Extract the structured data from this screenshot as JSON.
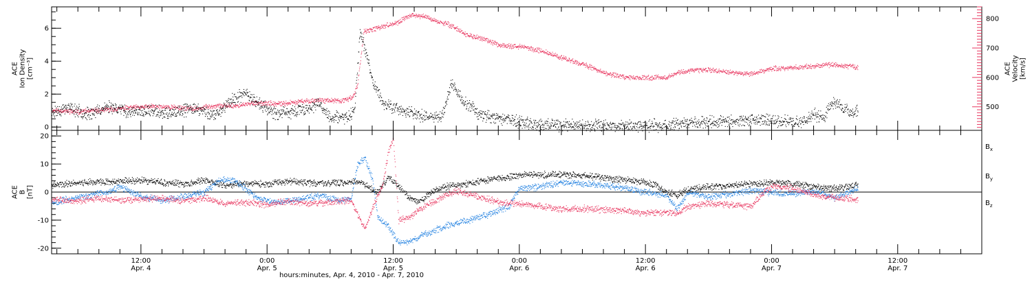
{
  "colors": {
    "black": "#000000",
    "pink": "#e8365f",
    "blue": "#1e7fe0",
    "axis": "#000000"
  },
  "time_axis": {
    "label": "hours:minutes, Apr.  4, 2010 - Apr.  7, 2010",
    "range_hours": [
      3.5,
      92.0
    ],
    "data_end_hours": 80.2,
    "ticks": [
      {
        "hours": 12,
        "time": "12:00",
        "date": "Apr. 4"
      },
      {
        "hours": 24,
        "time": "0:00",
        "date": "Apr. 5"
      },
      {
        "hours": 36,
        "time": "12:00",
        "date": "Apr. 5"
      },
      {
        "hours": 48,
        "time": "0:00",
        "date": "Apr. 6"
      },
      {
        "hours": 60,
        "time": "12:00",
        "date": "Apr. 6"
      },
      {
        "hours": 72,
        "time": "0:00",
        "date": "Apr. 7"
      },
      {
        "hours": 84,
        "time": "12:00",
        "date": "Apr. 7"
      }
    ]
  },
  "chart_data": [
    {
      "type": "scatter",
      "title": "",
      "left_axis": {
        "label_lines": [
          "ACE",
          "Ion Density",
          "[cm⁻³]"
        ],
        "ylim": [
          -0.2,
          7.3
        ],
        "ticks": [
          0,
          2,
          4,
          6
        ],
        "tick_labels": [
          "0",
          "2",
          "4",
          "6"
        ]
      },
      "right_axis": {
        "label_lines": [
          "ACE",
          "Velocity",
          "[km/s]"
        ],
        "ylim": [
          420,
          840
        ],
        "ticks": [
          500,
          600,
          700,
          800
        ],
        "tick_labels": [
          "500",
          "600",
          "700",
          "800"
        ],
        "color": "#e8365f"
      },
      "series": [
        {
          "name": "",
          "axis": "left",
          "color": "#000000",
          "points": [
            [
              3.5,
              0.9
            ],
            [
              5,
              1.2
            ],
            [
              7,
              0.8
            ],
            [
              9,
              1.3
            ],
            [
              11,
              0.9
            ],
            [
              13,
              1.0
            ],
            [
              15,
              0.8
            ],
            [
              17,
              1.2
            ],
            [
              19,
              0.7
            ],
            [
              20.5,
              1.6
            ],
            [
              22,
              2.1
            ],
            [
              23.5,
              1.3
            ],
            [
              25,
              0.8
            ],
            [
              27,
              1.0
            ],
            [
              29,
              1.4
            ],
            [
              30,
              0.6
            ],
            [
              31.5,
              0.6
            ],
            [
              32.3,
              1.0
            ],
            [
              32.8,
              5.8
            ],
            [
              33.3,
              4.8
            ],
            [
              34,
              2.8
            ],
            [
              35,
              1.5
            ],
            [
              36,
              1.2
            ],
            [
              37,
              1.0
            ],
            [
              38,
              0.8
            ],
            [
              39.5,
              0.7
            ],
            [
              40.5,
              0.6
            ],
            [
              41,
              1.5
            ],
            [
              41.5,
              2.7
            ],
            [
              42.5,
              1.7
            ],
            [
              44,
              0.9
            ],
            [
              45.5,
              0.6
            ],
            [
              47,
              0.5
            ],
            [
              48,
              0.3
            ],
            [
              50,
              0.15
            ],
            [
              53,
              0.1
            ],
            [
              56,
              0.15
            ],
            [
              59,
              0.1
            ],
            [
              62,
              0.1
            ],
            [
              63,
              0.2
            ],
            [
              65,
              0.3
            ],
            [
              68,
              0.35
            ],
            [
              70,
              0.5
            ],
            [
              72,
              0.4
            ],
            [
              74,
              0.3
            ],
            [
              75,
              0.35
            ],
            [
              76,
              0.8
            ],
            [
              77,
              0.6
            ],
            [
              77.5,
              1.5
            ],
            [
              78.5,
              1.4
            ],
            [
              79.5,
              0.8
            ],
            [
              80.2,
              1.1
            ]
          ]
        },
        {
          "name": "",
          "axis": "right",
          "color": "#e8365f",
          "points": [
            [
              3.5,
              490
            ],
            [
              6,
              484
            ],
            [
              9,
              492
            ],
            [
              11,
              498
            ],
            [
              13,
              502
            ],
            [
              15,
              500
            ],
            [
              17,
              494
            ],
            [
              19,
              505
            ],
            [
              21,
              504
            ],
            [
              23,
              515
            ],
            [
              25,
              510
            ],
            [
              27,
              518
            ],
            [
              29,
              524
            ],
            [
              31,
              520
            ],
            [
              32.2,
              535
            ],
            [
              32.6,
              578
            ],
            [
              33.2,
              760
            ],
            [
              33.8,
              760
            ],
            [
              35,
              775
            ],
            [
              36.5,
              788
            ],
            [
              37.5,
              812
            ],
            [
              39,
              808
            ],
            [
              40,
              793
            ],
            [
              41.5,
              778
            ],
            [
              43,
              745
            ],
            [
              44.5,
              732
            ],
            [
              46,
              712
            ],
            [
              48.5,
              704
            ],
            [
              50,
              692
            ],
            [
              52,
              668
            ],
            [
              54,
              646
            ],
            [
              56,
              618
            ],
            [
              58,
              600
            ],
            [
              60,
              600
            ],
            [
              62,
              602
            ],
            [
              63.5,
              622
            ],
            [
              66,
              628
            ],
            [
              68,
              618
            ],
            [
              70,
              612
            ],
            [
              72,
              632
            ],
            [
              74,
              634
            ],
            [
              76,
              640
            ],
            [
              78,
              644
            ],
            [
              80.2,
              634
            ]
          ]
        }
      ]
    },
    {
      "type": "scatter",
      "title": "",
      "left_axis": {
        "label_lines": [
          "ACE",
          "B",
          "[nT]"
        ],
        "ylim": [
          -22,
          22
        ],
        "ticks": [
          -20,
          -10,
          0,
          10,
          20
        ],
        "tick_labels": [
          "-20",
          "-10",
          "0",
          "10",
          "20"
        ]
      },
      "zero_line": true,
      "legend": {
        "placement": "right"
      },
      "series": [
        {
          "name": "Bx",
          "legend_text": "B",
          "legend_sub": "x",
          "color": "#000000",
          "points": [
            [
              3.5,
              2.5
            ],
            [
              6,
              3.5
            ],
            [
              9,
              3.8
            ],
            [
              12,
              4.2
            ],
            [
              14,
              3.5
            ],
            [
              16,
              3.0
            ],
            [
              18,
              4.2
            ],
            [
              20,
              2.5
            ],
            [
              22,
              3.3
            ],
            [
              24,
              2.8
            ],
            [
              26,
              4.0
            ],
            [
              28,
              3.4
            ],
            [
              30,
              3.2
            ],
            [
              32,
              3.8
            ],
            [
              32.8,
              4.0
            ],
            [
              33.5,
              2.0
            ],
            [
              34.5,
              0.0
            ],
            [
              35.5,
              5.5
            ],
            [
              36.5,
              2.0
            ],
            [
              37.5,
              -2.0
            ],
            [
              38.5,
              -3.5
            ],
            [
              39.5,
              0.0
            ],
            [
              41,
              2.0
            ],
            [
              43,
              3.0
            ],
            [
              45,
              4.5
            ],
            [
              47,
              5.5
            ],
            [
              48.5,
              6.5
            ],
            [
              50,
              6.2
            ],
            [
              52,
              6.4
            ],
            [
              54,
              6.0
            ],
            [
              56,
              5.2
            ],
            [
              58,
              4.4
            ],
            [
              60,
              3.6
            ],
            [
              61,
              2.5
            ],
            [
              62,
              0.0
            ],
            [
              63,
              -1.0
            ],
            [
              64,
              1.0
            ],
            [
              66,
              2.0
            ],
            [
              68,
              2.5
            ],
            [
              70,
              3.0
            ],
            [
              72,
              3.5
            ],
            [
              74,
              3.0
            ],
            [
              76,
              2.0
            ],
            [
              78,
              1.5
            ],
            [
              80.2,
              2.5
            ]
          ]
        },
        {
          "name": "By",
          "legend_text": "B",
          "legend_sub": "y",
          "color": "#1e7fe0",
          "points": [
            [
              3.5,
              -3.5
            ],
            [
              5,
              -2.5
            ],
            [
              7,
              -1.0
            ],
            [
              9,
              0.0
            ],
            [
              10,
              2.0
            ],
            [
              12,
              -1.5
            ],
            [
              14,
              -3.0
            ],
            [
              16,
              -1.5
            ],
            [
              18,
              0.0
            ],
            [
              19.5,
              4.5
            ],
            [
              21,
              4.0
            ],
            [
              23,
              -2.0
            ],
            [
              25,
              -3.5
            ],
            [
              27,
              -2.5
            ],
            [
              29,
              -1.0
            ],
            [
              31,
              -3.0
            ],
            [
              32,
              -2.0
            ],
            [
              32.6,
              10.0
            ],
            [
              33.3,
              12.0
            ],
            [
              34,
              5.0
            ],
            [
              34.5,
              -9.0
            ],
            [
              35.5,
              -12.0
            ],
            [
              36.5,
              -18.0
            ],
            [
              37.5,
              -17.5
            ],
            [
              39,
              -15.0
            ],
            [
              41,
              -12.0
            ],
            [
              43,
              -10.0
            ],
            [
              45,
              -8.0
            ],
            [
              47,
              -5.0
            ],
            [
              48,
              1.5
            ],
            [
              50,
              2.0
            ],
            [
              52,
              3.5
            ],
            [
              54,
              3.0
            ],
            [
              56,
              2.5
            ],
            [
              58,
              1.5
            ],
            [
              60,
              0.0
            ],
            [
              62,
              -1.0
            ],
            [
              63,
              -6.0
            ],
            [
              64,
              0.0
            ],
            [
              66,
              -1.5
            ],
            [
              68,
              -0.5
            ],
            [
              70,
              0.5
            ],
            [
              72,
              0.0
            ],
            [
              74,
              -0.5
            ],
            [
              76,
              0.5
            ],
            [
              78,
              -2.0
            ],
            [
              80.2,
              1.5
            ]
          ]
        },
        {
          "name": "Bz",
          "legend_text": "B",
          "legend_sub": "z",
          "color": "#e8365f",
          "points": [
            [
              3.5,
              -2.5
            ],
            [
              6,
              -3.0
            ],
            [
              8,
              -2.0
            ],
            [
              10,
              -3.0
            ],
            [
              12,
              -2.5
            ],
            [
              14,
              -2.0
            ],
            [
              16,
              -3.0
            ],
            [
              18,
              -2.0
            ],
            [
              20,
              -4.0
            ],
            [
              22,
              -3.5
            ],
            [
              24,
              -4.5
            ],
            [
              26,
              -3.0
            ],
            [
              28,
              -4.0
            ],
            [
              30,
              -3.5
            ],
            [
              32,
              -3.0
            ],
            [
              32.6,
              -8.0
            ],
            [
              33.3,
              -13.0
            ],
            [
              34,
              -6.0
            ],
            [
              35,
              3.0
            ],
            [
              35.5,
              14.0
            ],
            [
              36,
              19.0
            ],
            [
              36.5,
              -10.0
            ],
            [
              37.5,
              -9.0
            ],
            [
              38.5,
              -6.0
            ],
            [
              40,
              -3.0
            ],
            [
              42,
              0.5
            ],
            [
              44,
              -1.5
            ],
            [
              46,
              -3.5
            ],
            [
              48,
              -4.0
            ],
            [
              50,
              -5.0
            ],
            [
              52,
              -6.0
            ],
            [
              54,
              -5.8
            ],
            [
              56,
              -6.2
            ],
            [
              58,
              -6.5
            ],
            [
              60,
              -7.5
            ],
            [
              62,
              -7.0
            ],
            [
              63,
              -7.5
            ],
            [
              64,
              -5.0
            ],
            [
              66,
              -4.0
            ],
            [
              68,
              -4.5
            ],
            [
              70,
              -5.0
            ],
            [
              71,
              -1.0
            ],
            [
              72,
              2.0
            ],
            [
              74,
              1.5
            ],
            [
              76,
              -1.0
            ],
            [
              78,
              -2.0
            ],
            [
              80.2,
              -2.5
            ]
          ]
        }
      ]
    }
  ]
}
